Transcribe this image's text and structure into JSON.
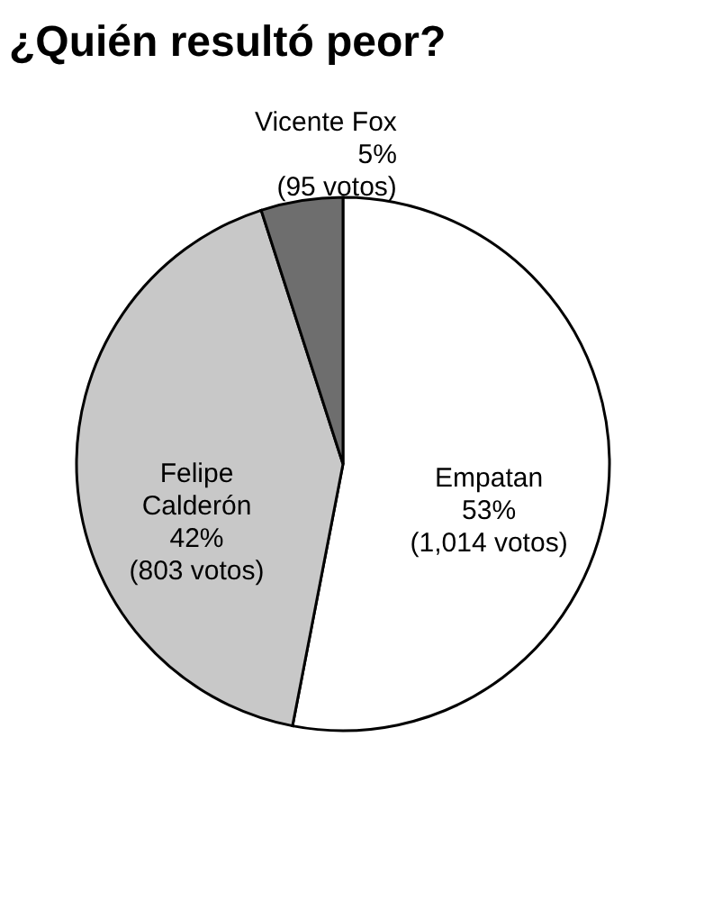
{
  "chart_data": {
    "type": "pie",
    "title": "¿Quién resultó peor?",
    "categories": [
      "Empatan",
      "Felipe Calderón",
      "Vicente Fox"
    ],
    "values": [
      1014,
      803,
      95
    ],
    "value_labels": [
      "53%\n(1,014 votos)",
      "42%\n(803 votos)",
      "5%\n(95 votos)"
    ],
    "colors": [
      "#ffffff",
      "#c8c8c8",
      "#6e6e6e"
    ],
    "legend": false
  }
}
